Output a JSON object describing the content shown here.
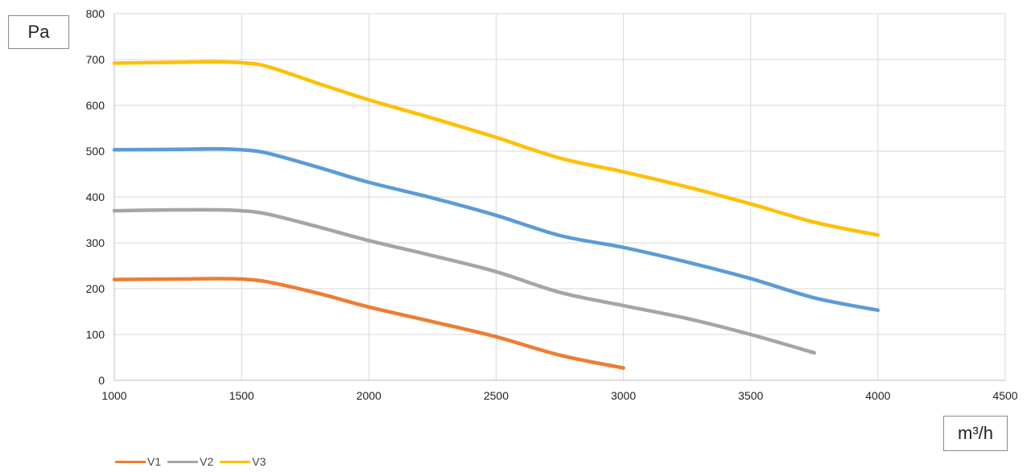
{
  "chart_data": {
    "type": "line",
    "xlabel": "m³/h",
    "ylabel": "Pa",
    "xlim": [
      1000,
      4500
    ],
    "ylim": [
      0,
      800
    ],
    "x_ticks": [
      1000,
      1500,
      2000,
      2500,
      3000,
      3500,
      4000,
      4500
    ],
    "y_ticks": [
      0,
      100,
      200,
      300,
      400,
      500,
      600,
      700,
      800
    ],
    "grid": true,
    "legend_position": "bottom-left",
    "series": [
      {
        "name": "V1",
        "color": "#ED7D31",
        "x": [
          1000,
          1250,
          1400,
          1500,
          1600,
          1800,
          2000,
          2250,
          2500,
          2750,
          3000
        ],
        "y": [
          220,
          221,
          222,
          221,
          215,
          190,
          160,
          128,
          95,
          55,
          27
        ]
      },
      {
        "name": "V2",
        "color": "#A5A5A5",
        "x": [
          1000,
          1250,
          1400,
          1500,
          1600,
          1800,
          2000,
          2250,
          2500,
          2750,
          3000,
          3250,
          3500,
          3750
        ],
        "y": [
          370,
          372,
          372,
          370,
          363,
          335,
          305,
          272,
          237,
          192,
          163,
          135,
          100,
          60
        ]
      },
      {
        "name": "V3",
        "color": "#FFC000",
        "x": [
          1000,
          1250,
          1400,
          1500,
          1600,
          1800,
          2000,
          2250,
          2500,
          2750,
          3000,
          3250,
          3500,
          3750,
          4000
        ],
        "y": [
          692,
          694,
          695,
          693,
          685,
          648,
          612,
          572,
          530,
          485,
          455,
          422,
          385,
          345,
          317
        ]
      },
      {
        "name": "",
        "color": "#5B9BD5",
        "x": [
          1000,
          1250,
          1400,
          1500,
          1600,
          1800,
          2000,
          2250,
          2500,
          2750,
          3000,
          3250,
          3500,
          3750,
          4000
        ],
        "y": [
          503,
          504,
          505,
          503,
          496,
          465,
          432,
          398,
          360,
          316,
          290,
          258,
          222,
          180,
          153
        ]
      }
    ]
  },
  "legend": [
    {
      "name": "V1",
      "color": "#ED7D31"
    },
    {
      "name": "V2",
      "color": "#A5A5A5"
    },
    {
      "name": "V3",
      "color": "#FFC000"
    }
  ]
}
